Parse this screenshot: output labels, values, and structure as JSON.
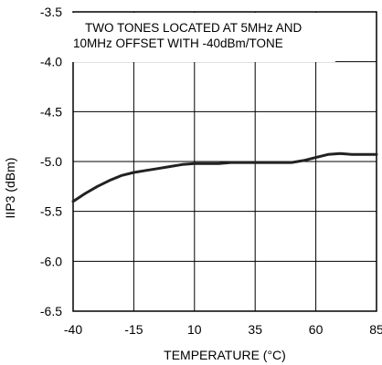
{
  "chart_data": {
    "type": "line",
    "title": "",
    "xlabel": "TEMPERATURE (°C)",
    "ylabel": "IIP3 (dBm)",
    "xlim": [
      -40,
      85
    ],
    "ylim": [
      -6.5,
      -3.5
    ],
    "x_ticks": [
      -40,
      -15,
      10,
      35,
      60,
      85
    ],
    "x_tick_labels": [
      "-40",
      "-15",
      "10",
      "35",
      "60",
      "85"
    ],
    "y_ticks": [
      -6.5,
      -6.0,
      -5.5,
      -5.0,
      -4.5,
      -4.0,
      -3.5
    ],
    "y_tick_labels": [
      "-6.5",
      "-6.0",
      "-5.5",
      "-5.0",
      "-4.5",
      "-4.0",
      "-3.5"
    ],
    "grid": true,
    "annotation": [
      "TWO TONES LOCATED AT 5MHz AND",
      "10MHz OFFSET WITH -40dBm/TONE"
    ],
    "series": [
      {
        "x": [
          -40,
          -35,
          -30,
          -25,
          -20,
          -15,
          -10,
          -5,
          0,
          5,
          10,
          15,
          20,
          25,
          30,
          35,
          40,
          45,
          50,
          55,
          60,
          65,
          70,
          75,
          80,
          85
        ],
        "y": [
          -5.4,
          -5.32,
          -5.25,
          -5.19,
          -5.14,
          -5.11,
          -5.09,
          -5.07,
          -5.05,
          -5.03,
          -5.02,
          -5.02,
          -5.02,
          -5.01,
          -5.01,
          -5.01,
          -5.01,
          -5.01,
          -5.01,
          -4.99,
          -4.96,
          -4.93,
          -4.92,
          -4.93,
          -4.93,
          -4.93
        ]
      }
    ],
    "colors": {
      "line": "#222222",
      "grid": "#000000"
    }
  }
}
